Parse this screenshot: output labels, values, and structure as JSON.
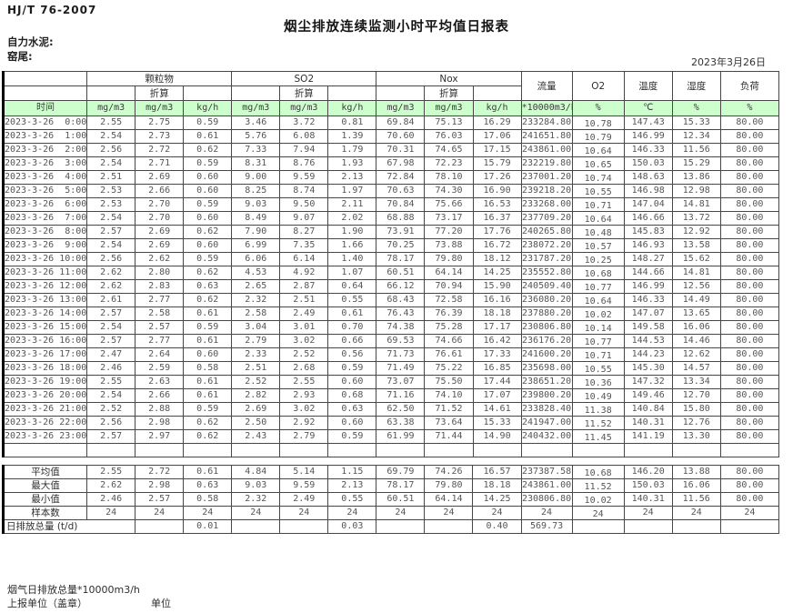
{
  "meta": {
    "standard": "HJ/T  76-2007",
    "title": "烟尘排放连续监测小时平均值日报表",
    "company": "自力水泥:",
    "location": "窑尾:",
    "date": "2023年3月26日"
  },
  "table": {
    "headers": {
      "time": "时间",
      "particulate": "颗粒物",
      "so2": "SO2",
      "nox": "Nox",
      "converted": "折算",
      "flow": "流量",
      "o2": "O2",
      "temperature": "温度",
      "humidity": "湿度",
      "load": "负荷"
    },
    "units": [
      "mg/m3",
      "mg/m3",
      "kg/h",
      "mg/m3",
      "mg/m3",
      "kg/h",
      "mg/m3",
      "mg/m3",
      "kg/h",
      "*10000m3/h",
      "%",
      "℃",
      "%",
      "%"
    ],
    "rows": [
      {
        "time": "2023-3-26  0:00",
        "values": [
          "2.55",
          "2.75",
          "0.59",
          "3.46",
          "3.72",
          "0.81",
          "69.84",
          "75.13",
          "16.29",
          "233284.80",
          "10.78",
          "147.43",
          "15.33",
          "80.00"
        ]
      },
      {
        "time": "2023-3-26  1:00",
        "values": [
          "2.54",
          "2.73",
          "0.61",
          "5.76",
          "6.08",
          "1.39",
          "70.60",
          "76.03",
          "17.06",
          "241651.80",
          "10.79",
          "146.99",
          "12.34",
          "80.00"
        ]
      },
      {
        "time": "2023-3-26  2:00",
        "values": [
          "2.56",
          "2.72",
          "0.62",
          "7.33",
          "7.94",
          "1.79",
          "70.31",
          "74.65",
          "17.15",
          "243861.00",
          "10.64",
          "146.33",
          "11.56",
          "80.00"
        ]
      },
      {
        "time": "2023-3-26  3:00",
        "values": [
          "2.54",
          "2.71",
          "0.59",
          "8.31",
          "8.76",
          "1.93",
          "67.98",
          "72.23",
          "15.79",
          "232219.80",
          "10.65",
          "150.03",
          "15.29",
          "80.00"
        ]
      },
      {
        "time": "2023-3-26  4:00",
        "values": [
          "2.51",
          "2.69",
          "0.60",
          "9.00",
          "9.59",
          "2.13",
          "72.84",
          "78.10",
          "17.26",
          "237001.20",
          "10.74",
          "148.63",
          "13.86",
          "80.00"
        ]
      },
      {
        "time": "2023-3-26  5:00",
        "values": [
          "2.53",
          "2.66",
          "0.60",
          "8.25",
          "8.74",
          "1.97",
          "70.63",
          "74.30",
          "16.90",
          "239218.20",
          "10.55",
          "146.98",
          "12.98",
          "80.00"
        ]
      },
      {
        "time": "2023-3-26  6:00",
        "values": [
          "2.53",
          "2.70",
          "0.59",
          "9.03",
          "9.50",
          "2.11",
          "70.84",
          "75.66",
          "16.53",
          "233268.00",
          "10.71",
          "147.04",
          "14.81",
          "80.00"
        ]
      },
      {
        "time": "2023-3-26  7:00",
        "values": [
          "2.54",
          "2.70",
          "0.60",
          "8.49",
          "9.07",
          "2.02",
          "68.88",
          "73.17",
          "16.37",
          "237709.20",
          "10.64",
          "146.66",
          "13.72",
          "80.00"
        ]
      },
      {
        "time": "2023-3-26  8:00",
        "values": [
          "2.57",
          "2.69",
          "0.62",
          "7.90",
          "8.27",
          "1.90",
          "73.91",
          "77.20",
          "17.76",
          "240265.80",
          "10.48",
          "145.83",
          "12.92",
          "80.00"
        ]
      },
      {
        "time": "2023-3-26  9:00",
        "values": [
          "2.54",
          "2.69",
          "0.60",
          "6.99",
          "7.35",
          "1.66",
          "70.25",
          "73.88",
          "16.72",
          "238072.20",
          "10.57",
          "146.93",
          "13.58",
          "80.00"
        ]
      },
      {
        "time": "2023-3-26 10:00",
        "values": [
          "2.56",
          "2.62",
          "0.59",
          "6.06",
          "6.14",
          "1.40",
          "78.17",
          "79.80",
          "18.12",
          "231787.20",
          "10.25",
          "148.27",
          "15.62",
          "80.00"
        ]
      },
      {
        "time": "2023-3-26 11:00",
        "values": [
          "2.62",
          "2.80",
          "0.62",
          "4.53",
          "4.92",
          "1.07",
          "60.51",
          "64.14",
          "14.25",
          "235552.80",
          "10.68",
          "144.66",
          "14.81",
          "80.00"
        ]
      },
      {
        "time": "2023-3-26 12:00",
        "values": [
          "2.62",
          "2.83",
          "0.63",
          "2.65",
          "2.87",
          "0.64",
          "66.12",
          "70.94",
          "15.90",
          "240509.40",
          "10.77",
          "146.99",
          "12.56",
          "80.00"
        ]
      },
      {
        "time": "2023-3-26 13:00",
        "values": [
          "2.61",
          "2.77",
          "0.62",
          "2.32",
          "2.51",
          "0.55",
          "68.43",
          "72.58",
          "16.16",
          "236080.20",
          "10.64",
          "146.33",
          "14.49",
          "80.00"
        ]
      },
      {
        "time": "2023-3-26 14:00",
        "values": [
          "2.57",
          "2.58",
          "0.61",
          "2.58",
          "2.49",
          "0.61",
          "76.43",
          "76.39",
          "18.18",
          "237880.20",
          "10.02",
          "147.07",
          "13.65",
          "80.00"
        ]
      },
      {
        "time": "2023-3-26 15:00",
        "values": [
          "2.54",
          "2.57",
          "0.59",
          "3.04",
          "3.01",
          "0.70",
          "74.38",
          "75.28",
          "17.17",
          "230806.80",
          "10.14",
          "149.58",
          "16.06",
          "80.00"
        ]
      },
      {
        "time": "2023-3-26 16:00",
        "values": [
          "2.57",
          "2.77",
          "0.61",
          "2.79",
          "3.02",
          "0.66",
          "69.53",
          "74.66",
          "16.42",
          "236176.20",
          "10.77",
          "144.53",
          "14.46",
          "80.00"
        ]
      },
      {
        "time": "2023-3-26 17:00",
        "values": [
          "2.47",
          "2.64",
          "0.60",
          "2.33",
          "2.52",
          "0.56",
          "71.73",
          "76.61",
          "17.33",
          "241600.20",
          "10.71",
          "144.23",
          "12.62",
          "80.00"
        ]
      },
      {
        "time": "2023-3-26 18:00",
        "values": [
          "2.46",
          "2.59",
          "0.58",
          "2.51",
          "2.68",
          "0.59",
          "71.49",
          "75.22",
          "16.85",
          "235698.00",
          "10.55",
          "145.30",
          "14.57",
          "80.00"
        ]
      },
      {
        "time": "2023-3-26 19:00",
        "values": [
          "2.55",
          "2.63",
          "0.61",
          "2.52",
          "2.55",
          "0.60",
          "73.07",
          "75.50",
          "17.44",
          "238651.20",
          "10.36",
          "147.32",
          "13.34",
          "80.00"
        ]
      },
      {
        "time": "2023-3-26 20:00",
        "values": [
          "2.54",
          "2.66",
          "0.61",
          "2.82",
          "2.93",
          "0.68",
          "71.16",
          "74.10",
          "17.07",
          "239800.20",
          "10.49",
          "149.46",
          "12.70",
          "80.00"
        ]
      },
      {
        "time": "2023-3-26 21:00",
        "values": [
          "2.52",
          "2.88",
          "0.59",
          "2.69",
          "3.02",
          "0.63",
          "62.50",
          "71.52",
          "14.61",
          "233828.40",
          "11.38",
          "140.84",
          "15.80",
          "80.00"
        ]
      },
      {
        "time": "2023-3-26 22:00",
        "values": [
          "2.56",
          "2.98",
          "0.62",
          "2.50",
          "2.92",
          "0.60",
          "63.38",
          "73.64",
          "15.33",
          "241947.00",
          "11.52",
          "140.31",
          "12.76",
          "80.00"
        ]
      },
      {
        "time": "2023-3-26 23:00",
        "values": [
          "2.57",
          "2.97",
          "0.62",
          "2.43",
          "2.79",
          "0.59",
          "61.99",
          "71.44",
          "14.90",
          "240432.00",
          "11.45",
          "141.19",
          "13.30",
          "80.00"
        ]
      }
    ],
    "summary": [
      {
        "label": "平均值",
        "values": [
          "2.55",
          "2.72",
          "0.61",
          "4.84",
          "5.14",
          "1.15",
          "69.79",
          "74.26",
          "16.57",
          "237387.58",
          "10.68",
          "146.20",
          "13.88",
          "80.00"
        ]
      },
      {
        "label": "最大值",
        "values": [
          "2.62",
          "2.98",
          "0.63",
          "9.03",
          "9.59",
          "2.13",
          "78.17",
          "79.80",
          "18.18",
          "243861.00",
          "11.52",
          "150.03",
          "16.06",
          "80.00"
        ]
      },
      {
        "label": "最小值",
        "values": [
          "2.46",
          "2.57",
          "0.58",
          "2.32",
          "2.49",
          "0.55",
          "60.51",
          "64.14",
          "14.25",
          "230806.80",
          "10.02",
          "140.31",
          "11.56",
          "80.00"
        ]
      },
      {
        "label": "样本数",
        "values": [
          "24",
          "24",
          "24",
          "24",
          "24",
          "24",
          "24",
          "24",
          "24",
          "24",
          "24",
          "24",
          "24",
          "24"
        ]
      }
    ],
    "daily_total": {
      "label": "日排放总量 (t/d)",
      "values": [
        "",
        "0.01",
        "",
        "",
        "0.03",
        "",
        "",
        "0.40",
        "569.73",
        "",
        "",
        "",
        ""
      ]
    }
  },
  "footer": {
    "line1": "烟气日排放总量*10000m3/h",
    "line2": "上报单位（盖章）",
    "line3": "单位"
  }
}
